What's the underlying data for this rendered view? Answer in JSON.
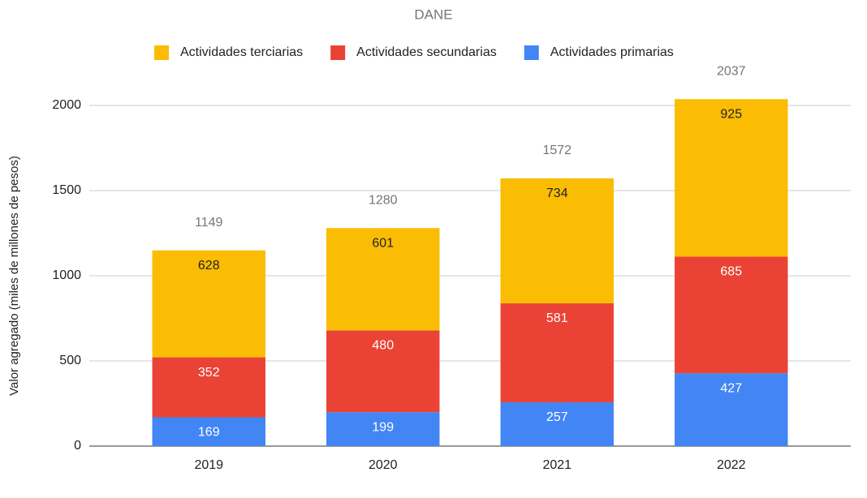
{
  "chart_data": {
    "type": "stacked_bar",
    "title": "DANE",
    "y_label": "Valor agregado (miles de millones de pesos)",
    "categories": [
      "2019",
      "2020",
      "2021",
      "2022"
    ],
    "series": [
      {
        "name": "Actividades primarias",
        "color": "#4285f4",
        "values": [
          169,
          199,
          257,
          427
        ]
      },
      {
        "name": "Actividades secundarias",
        "color": "#ea4335",
        "values": [
          352,
          480,
          581,
          685
        ]
      },
      {
        "name": "Actividades terciarias",
        "color": "#fbbc04",
        "values": [
          628,
          601,
          734,
          925
        ]
      }
    ],
    "totals": [
      1149,
      1280,
      1572,
      2037
    ],
    "ylim": [
      0,
      2200
    ],
    "yticks": [
      0,
      500,
      1000,
      1500,
      2000
    ],
    "grid": true,
    "legend": "top"
  }
}
